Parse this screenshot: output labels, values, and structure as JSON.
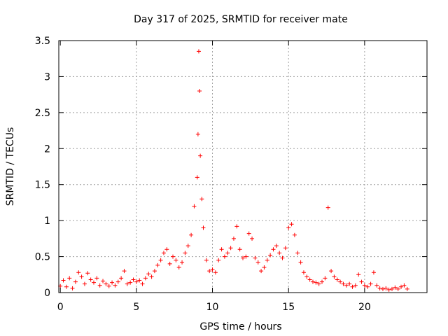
{
  "chart_data": {
    "type": "scatter",
    "title": "Day 317 of 2025, SRMTID for receiver mate",
    "xlabel": "GPS time / hours",
    "ylabel": "SRMTID / TECUs",
    "xlim": [
      -0.1,
      24.1
    ],
    "ylim": [
      0,
      3.5
    ],
    "x_ticks": [
      0,
      5,
      10,
      15,
      20
    ],
    "x_tick_labels": [
      "0",
      "5",
      "10",
      "15",
      "20"
    ],
    "y_ticks": [
      0,
      0.5,
      1,
      1.5,
      2,
      2.5,
      3,
      3.5
    ],
    "y_tick_labels": [
      "0",
      "0.5",
      "1",
      "1.5",
      "2",
      "2.5",
      "3",
      "3.5"
    ],
    "grid": true,
    "marker": "+",
    "color": "#ff0000",
    "series": [
      {
        "name": "SRMTID",
        "points": [
          [
            0.0,
            0.09
          ],
          [
            0.2,
            0.17
          ],
          [
            0.4,
            0.08
          ],
          [
            0.6,
            0.2
          ],
          [
            0.8,
            0.06
          ],
          [
            1.0,
            0.15
          ],
          [
            1.2,
            0.28
          ],
          [
            1.4,
            0.22
          ],
          [
            1.6,
            0.12
          ],
          [
            1.8,
            0.27
          ],
          [
            2.0,
            0.18
          ],
          [
            2.2,
            0.14
          ],
          [
            2.4,
            0.2
          ],
          [
            2.6,
            0.1
          ],
          [
            2.8,
            0.16
          ],
          [
            3.0,
            0.12
          ],
          [
            3.2,
            0.09
          ],
          [
            3.4,
            0.14
          ],
          [
            3.6,
            0.1
          ],
          [
            3.8,
            0.15
          ],
          [
            4.0,
            0.2
          ],
          [
            4.2,
            0.3
          ],
          [
            4.4,
            0.12
          ],
          [
            4.6,
            0.14
          ],
          [
            4.8,
            0.18
          ],
          [
            5.0,
            0.15
          ],
          [
            5.2,
            0.17
          ],
          [
            5.4,
            0.12
          ],
          [
            5.6,
            0.2
          ],
          [
            5.8,
            0.26
          ],
          [
            6.0,
            0.22
          ],
          [
            6.2,
            0.3
          ],
          [
            6.4,
            0.38
          ],
          [
            6.6,
            0.45
          ],
          [
            6.8,
            0.55
          ],
          [
            7.0,
            0.6
          ],
          [
            7.2,
            0.4
          ],
          [
            7.4,
            0.5
          ],
          [
            7.6,
            0.45
          ],
          [
            7.8,
            0.35
          ],
          [
            8.0,
            0.42
          ],
          [
            8.2,
            0.55
          ],
          [
            8.4,
            0.65
          ],
          [
            8.6,
            0.8
          ],
          [
            8.8,
            1.2
          ],
          [
            9.0,
            1.6
          ],
          [
            9.05,
            2.2
          ],
          [
            9.1,
            3.35
          ],
          [
            9.15,
            2.8
          ],
          [
            9.2,
            1.9
          ],
          [
            9.3,
            1.3
          ],
          [
            9.4,
            0.9
          ],
          [
            9.6,
            0.45
          ],
          [
            9.8,
            0.3
          ],
          [
            10.0,
            0.32
          ],
          [
            10.2,
            0.28
          ],
          [
            10.4,
            0.45
          ],
          [
            10.6,
            0.6
          ],
          [
            10.8,
            0.5
          ],
          [
            11.0,
            0.55
          ],
          [
            11.2,
            0.62
          ],
          [
            11.4,
            0.75
          ],
          [
            11.6,
            0.92
          ],
          [
            11.8,
            0.6
          ],
          [
            12.0,
            0.48
          ],
          [
            12.2,
            0.5
          ],
          [
            12.4,
            0.82
          ],
          [
            12.6,
            0.75
          ],
          [
            12.8,
            0.48
          ],
          [
            13.0,
            0.42
          ],
          [
            13.2,
            0.3
          ],
          [
            13.4,
            0.35
          ],
          [
            13.6,
            0.45
          ],
          [
            13.8,
            0.52
          ],
          [
            14.0,
            0.6
          ],
          [
            14.2,
            0.65
          ],
          [
            14.4,
            0.55
          ],
          [
            14.6,
            0.48
          ],
          [
            14.8,
            0.62
          ],
          [
            15.0,
            0.9
          ],
          [
            15.2,
            0.95
          ],
          [
            15.4,
            0.8
          ],
          [
            15.6,
            0.55
          ],
          [
            15.8,
            0.42
          ],
          [
            16.0,
            0.28
          ],
          [
            16.2,
            0.22
          ],
          [
            16.4,
            0.18
          ],
          [
            16.6,
            0.15
          ],
          [
            16.8,
            0.14
          ],
          [
            17.0,
            0.12
          ],
          [
            17.2,
            0.15
          ],
          [
            17.4,
            0.2
          ],
          [
            17.6,
            1.18
          ],
          [
            17.8,
            0.3
          ],
          [
            18.0,
            0.22
          ],
          [
            18.2,
            0.18
          ],
          [
            18.4,
            0.15
          ],
          [
            18.6,
            0.12
          ],
          [
            18.8,
            0.1
          ],
          [
            19.0,
            0.12
          ],
          [
            19.2,
            0.08
          ],
          [
            19.4,
            0.1
          ],
          [
            19.6,
            0.25
          ],
          [
            19.8,
            0.15
          ],
          [
            20.0,
            0.1
          ],
          [
            20.2,
            0.08
          ],
          [
            20.4,
            0.12
          ],
          [
            20.6,
            0.28
          ],
          [
            20.8,
            0.1
          ],
          [
            21.0,
            0.06
          ],
          [
            21.2,
            0.05
          ],
          [
            21.4,
            0.06
          ],
          [
            21.6,
            0.04
          ],
          [
            21.8,
            0.05
          ],
          [
            22.0,
            0.07
          ],
          [
            22.2,
            0.05
          ],
          [
            22.4,
            0.08
          ],
          [
            22.6,
            0.1
          ],
          [
            22.8,
            0.05
          ]
        ]
      }
    ]
  }
}
